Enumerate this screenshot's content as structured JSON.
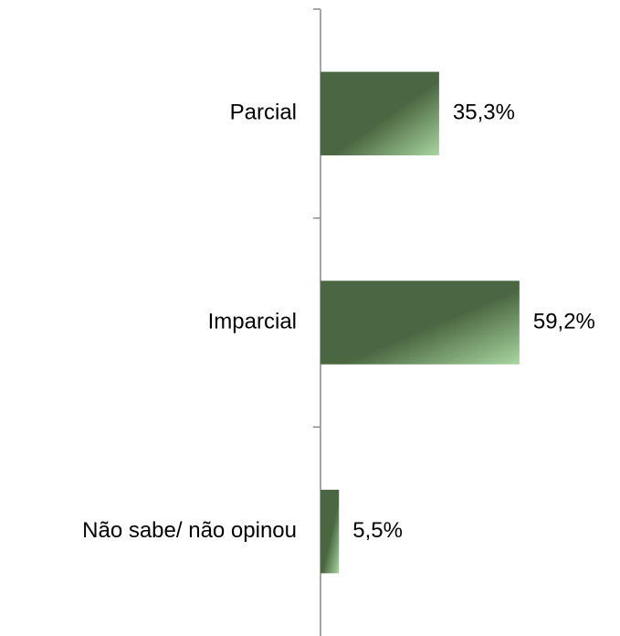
{
  "chart_data": {
    "type": "bar",
    "orientation": "horizontal",
    "categories": [
      "Parcial",
      "Imparcial",
      "Não sabe/ não opinou"
    ],
    "values": [
      35.3,
      59.2,
      5.5
    ],
    "value_labels": [
      "35,3%",
      "59,2%",
      "5,5%"
    ],
    "color": "#4a6741",
    "gradient_color": "#a9d6a0"
  }
}
